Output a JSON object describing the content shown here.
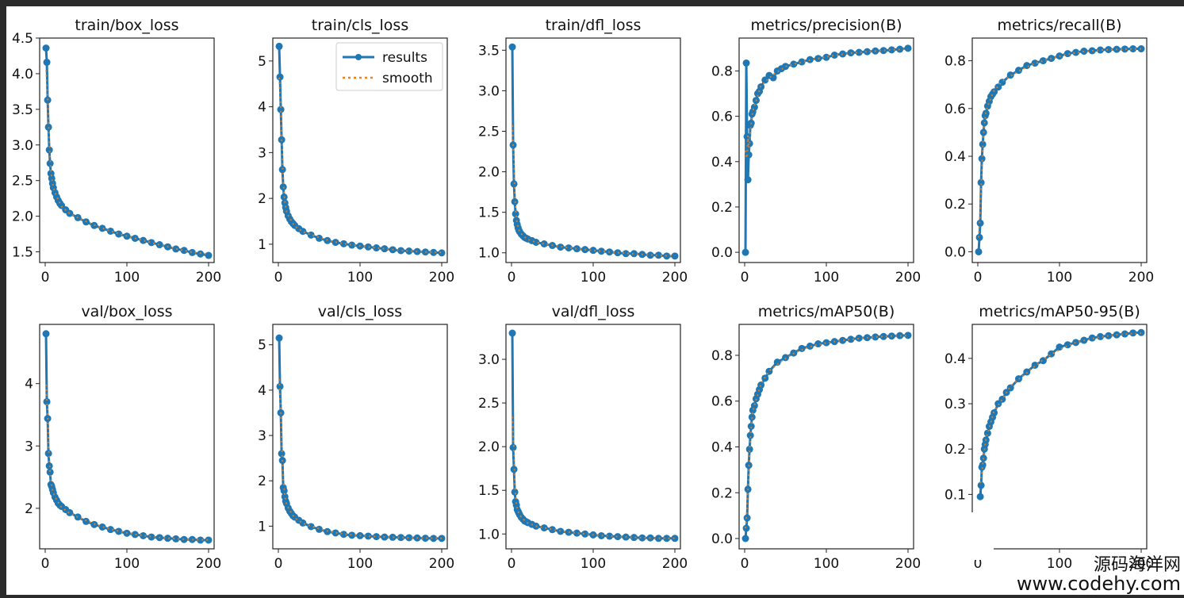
{
  "figure": {
    "legend": {
      "results": "results",
      "smooth": "smooth"
    },
    "colors": {
      "results": "#1f77b4",
      "smooth": "#ff7f0e",
      "frame": "#222222"
    }
  },
  "watermark": {
    "line1": "源码海洋网",
    "line2": "www.codehy.com"
  },
  "chart_data": [
    {
      "type": "line",
      "title": "train/box_loss",
      "xlim": [
        0,
        200
      ],
      "ylim": [
        1.35,
        4.5
      ],
      "xticks": [
        0,
        100,
        200
      ],
      "yticks": [
        1.5,
        2.0,
        2.5,
        3.0,
        3.5,
        4.0,
        4.5
      ],
      "ytick_labels": [
        "1.5",
        "2.0",
        "2.5",
        "3.0",
        "3.5",
        "4.0",
        "4.5"
      ],
      "legend": false,
      "series": [
        {
          "name": "results",
          "x": [
            1,
            2,
            3,
            4,
            5,
            6,
            7,
            8,
            9,
            10,
            12,
            14,
            16,
            18,
            20,
            25,
            30,
            40,
            50,
            60,
            70,
            80,
            90,
            100,
            110,
            120,
            130,
            140,
            150,
            160,
            170,
            180,
            190,
            200
          ],
          "y": [
            4.36,
            4.16,
            3.63,
            3.25,
            2.93,
            2.74,
            2.6,
            2.53,
            2.46,
            2.4,
            2.33,
            2.27,
            2.22,
            2.18,
            2.15,
            2.09,
            2.04,
            1.98,
            1.92,
            1.87,
            1.83,
            1.79,
            1.75,
            1.72,
            1.69,
            1.66,
            1.63,
            1.6,
            1.57,
            1.54,
            1.52,
            1.49,
            1.47,
            1.45
          ]
        }
      ]
    },
    {
      "type": "line",
      "title": "train/cls_loss",
      "xlim": [
        0,
        200
      ],
      "ylim": [
        0.6,
        5.5
      ],
      "xticks": [
        0,
        100,
        200
      ],
      "yticks": [
        1,
        2,
        3,
        4,
        5
      ],
      "ytick_labels": [
        "1",
        "2",
        "3",
        "4",
        "5"
      ],
      "legend": true,
      "series": [
        {
          "name": "results",
          "x": [
            1,
            2,
            3,
            4,
            5,
            6,
            7,
            8,
            9,
            10,
            12,
            14,
            16,
            18,
            20,
            25,
            30,
            40,
            50,
            60,
            70,
            80,
            90,
            100,
            110,
            120,
            130,
            140,
            150,
            160,
            170,
            180,
            190,
            200
          ],
          "y": [
            5.32,
            4.65,
            3.94,
            3.28,
            2.63,
            2.25,
            2.03,
            1.9,
            1.8,
            1.72,
            1.62,
            1.55,
            1.49,
            1.45,
            1.41,
            1.34,
            1.28,
            1.2,
            1.13,
            1.08,
            1.04,
            1.01,
            0.98,
            0.96,
            0.94,
            0.92,
            0.9,
            0.88,
            0.86,
            0.85,
            0.84,
            0.83,
            0.82,
            0.81
          ]
        }
      ]
    },
    {
      "type": "line",
      "title": "train/dfl_loss",
      "xlim": [
        0,
        200
      ],
      "ylim": [
        0.88,
        3.65
      ],
      "xticks": [
        0,
        100,
        200
      ],
      "yticks": [
        1.0,
        1.5,
        2.0,
        2.5,
        3.0,
        3.5
      ],
      "ytick_labels": [
        "1.0",
        "1.5",
        "2.0",
        "2.5",
        "3.0",
        "3.5"
      ],
      "legend": false,
      "series": [
        {
          "name": "results",
          "x": [
            1,
            2,
            3,
            4,
            5,
            6,
            7,
            8,
            9,
            10,
            12,
            14,
            16,
            18,
            20,
            25,
            30,
            40,
            50,
            60,
            70,
            80,
            90,
            100,
            110,
            120,
            130,
            140,
            150,
            160,
            170,
            180,
            190,
            200
          ],
          "y": [
            3.54,
            2.33,
            1.85,
            1.63,
            1.48,
            1.4,
            1.35,
            1.31,
            1.28,
            1.26,
            1.23,
            1.21,
            1.19,
            1.18,
            1.17,
            1.15,
            1.13,
            1.11,
            1.09,
            1.07,
            1.06,
            1.05,
            1.04,
            1.03,
            1.02,
            1.01,
            1.0,
            0.99,
            0.99,
            0.98,
            0.97,
            0.97,
            0.96,
            0.96
          ]
        }
      ]
    },
    {
      "type": "line",
      "title": "metrics/precision(B)",
      "xlim": [
        0,
        200
      ],
      "ylim": [
        -0.045,
        0.945
      ],
      "xticks": [
        0,
        100,
        200
      ],
      "yticks": [
        0.0,
        0.2,
        0.4,
        0.6,
        0.8
      ],
      "ytick_labels": [
        "0.0",
        "0.2",
        "0.4",
        "0.6",
        "0.8"
      ],
      "legend": false,
      "series": [
        {
          "name": "results",
          "x": [
            1,
            2,
            3,
            4,
            5,
            6,
            7,
            8,
            9,
            10,
            12,
            14,
            16,
            18,
            20,
            25,
            30,
            35,
            40,
            45,
            50,
            60,
            70,
            80,
            90,
            100,
            110,
            120,
            130,
            140,
            150,
            160,
            170,
            180,
            190,
            200
          ],
          "y": [
            0.0,
            0.835,
            0.51,
            0.32,
            0.43,
            0.48,
            0.56,
            0.57,
            0.61,
            0.62,
            0.64,
            0.67,
            0.7,
            0.71,
            0.73,
            0.76,
            0.78,
            0.77,
            0.8,
            0.81,
            0.82,
            0.83,
            0.84,
            0.85,
            0.855,
            0.86,
            0.87,
            0.875,
            0.88,
            0.882,
            0.885,
            0.888,
            0.89,
            0.893,
            0.896,
            0.9
          ]
        }
      ]
    },
    {
      "type": "line",
      "title": "metrics/recall(B)",
      "xlim": [
        0,
        200
      ],
      "ylim": [
        -0.045,
        0.895
      ],
      "xticks": [
        0,
        100,
        200
      ],
      "yticks": [
        0.0,
        0.2,
        0.4,
        0.6,
        0.8
      ],
      "ytick_labels": [
        "0.0",
        "0.2",
        "0.4",
        "0.6",
        "0.8"
      ],
      "legend": false,
      "series": [
        {
          "name": "results",
          "x": [
            1,
            2,
            3,
            4,
            5,
            6,
            7,
            8,
            9,
            10,
            12,
            14,
            16,
            18,
            20,
            25,
            30,
            40,
            50,
            60,
            70,
            80,
            90,
            100,
            110,
            120,
            130,
            140,
            150,
            160,
            170,
            180,
            190,
            200
          ],
          "y": [
            0.0,
            0.06,
            0.12,
            0.29,
            0.39,
            0.45,
            0.5,
            0.54,
            0.57,
            0.58,
            0.61,
            0.63,
            0.65,
            0.66,
            0.67,
            0.69,
            0.71,
            0.74,
            0.76,
            0.78,
            0.79,
            0.8,
            0.81,
            0.82,
            0.83,
            0.835,
            0.84,
            0.842,
            0.845,
            0.847,
            0.848,
            0.849,
            0.85,
            0.85
          ]
        }
      ]
    },
    {
      "type": "line",
      "title": "val/box_loss",
      "xlim": [
        0,
        200
      ],
      "ylim": [
        1.35,
        4.95
      ],
      "xticks": [
        0,
        100,
        200
      ],
      "yticks": [
        2,
        3,
        4
      ],
      "ytick_labels": [
        "2",
        "3",
        "4"
      ],
      "legend": false,
      "series": [
        {
          "name": "results",
          "x": [
            1,
            2,
            3,
            4,
            5,
            6,
            7,
            8,
            9,
            10,
            12,
            14,
            16,
            18,
            20,
            25,
            30,
            40,
            50,
            60,
            70,
            80,
            90,
            100,
            110,
            120,
            130,
            140,
            150,
            160,
            170,
            180,
            190,
            200
          ],
          "y": [
            4.8,
            3.71,
            3.44,
            2.88,
            2.68,
            2.58,
            2.38,
            2.35,
            2.3,
            2.25,
            2.18,
            2.13,
            2.08,
            2.05,
            2.03,
            1.98,
            1.93,
            1.86,
            1.79,
            1.74,
            1.7,
            1.66,
            1.63,
            1.6,
            1.58,
            1.56,
            1.54,
            1.53,
            1.52,
            1.51,
            1.5,
            1.5,
            1.49,
            1.49
          ]
        }
      ]
    },
    {
      "type": "line",
      "title": "val/cls_loss",
      "xlim": [
        0,
        200
      ],
      "ylim": [
        0.5,
        5.45
      ],
      "xticks": [
        0,
        100,
        200
      ],
      "yticks": [
        1,
        2,
        3,
        4,
        5
      ],
      "ytick_labels": [
        "1",
        "2",
        "3",
        "4",
        "5"
      ],
      "legend": false,
      "series": [
        {
          "name": "results",
          "x": [
            1,
            2,
            3,
            4,
            5,
            6,
            7,
            8,
            9,
            10,
            12,
            14,
            16,
            18,
            20,
            25,
            30,
            40,
            50,
            60,
            70,
            80,
            90,
            100,
            110,
            120,
            130,
            140,
            150,
            160,
            170,
            180,
            190,
            200
          ],
          "y": [
            5.15,
            4.08,
            3.5,
            2.6,
            2.45,
            1.85,
            1.78,
            1.65,
            1.55,
            1.5,
            1.4,
            1.33,
            1.28,
            1.23,
            1.2,
            1.13,
            1.07,
            0.99,
            0.93,
            0.88,
            0.85,
            0.82,
            0.8,
            0.79,
            0.78,
            0.77,
            0.76,
            0.755,
            0.75,
            0.745,
            0.74,
            0.735,
            0.73,
            0.73
          ]
        }
      ]
    },
    {
      "type": "line",
      "title": "val/dfl_loss",
      "xlim": [
        0,
        200
      ],
      "ylim": [
        0.83,
        3.4
      ],
      "xticks": [
        0,
        100,
        200
      ],
      "yticks": [
        1.0,
        1.5,
        2.0,
        2.5,
        3.0
      ],
      "ytick_labels": [
        "1.0",
        "1.5",
        "2.0",
        "2.5",
        "3.0"
      ],
      "legend": false,
      "series": [
        {
          "name": "results",
          "x": [
            1,
            2,
            3,
            4,
            5,
            6,
            7,
            8,
            9,
            10,
            12,
            14,
            16,
            18,
            20,
            25,
            30,
            40,
            50,
            60,
            70,
            80,
            90,
            100,
            110,
            120,
            130,
            140,
            150,
            160,
            170,
            180,
            190,
            200
          ],
          "y": [
            3.3,
            1.99,
            1.74,
            1.48,
            1.37,
            1.33,
            1.28,
            1.26,
            1.24,
            1.22,
            1.19,
            1.17,
            1.15,
            1.14,
            1.13,
            1.11,
            1.09,
            1.07,
            1.05,
            1.03,
            1.02,
            1.01,
            1.0,
            0.99,
            0.98,
            0.975,
            0.97,
            0.965,
            0.96,
            0.955,
            0.955,
            0.95,
            0.95,
            0.95
          ]
        }
      ]
    },
    {
      "type": "line",
      "title": "metrics/mAP50(B)",
      "xlim": [
        0,
        200
      ],
      "ylim": [
        -0.045,
        0.935
      ],
      "xticks": [
        0,
        100,
        200
      ],
      "yticks": [
        0.0,
        0.2,
        0.4,
        0.6,
        0.8
      ],
      "ytick_labels": [
        "0.0",
        "0.2",
        "0.4",
        "0.6",
        "0.8"
      ],
      "legend": false,
      "series": [
        {
          "name": "results",
          "x": [
            1,
            2,
            3,
            4,
            5,
            6,
            7,
            8,
            9,
            10,
            12,
            14,
            16,
            18,
            20,
            25,
            30,
            40,
            50,
            60,
            70,
            80,
            90,
            100,
            110,
            120,
            130,
            140,
            150,
            160,
            170,
            180,
            190,
            200
          ],
          "y": [
            0.0,
            0.045,
            0.09,
            0.215,
            0.32,
            0.39,
            0.45,
            0.49,
            0.53,
            0.56,
            0.58,
            0.61,
            0.63,
            0.65,
            0.67,
            0.7,
            0.73,
            0.77,
            0.79,
            0.81,
            0.83,
            0.84,
            0.85,
            0.855,
            0.86,
            0.865,
            0.87,
            0.875,
            0.877,
            0.88,
            0.882,
            0.884,
            0.886,
            0.887
          ]
        }
      ]
    },
    {
      "type": "line",
      "title": "metrics/mAP50-95(B)",
      "xlim": [
        0,
        200
      ],
      "ylim": [
        -0.02,
        0.475
      ],
      "xticks": [
        0,
        100,
        200
      ],
      "yticks": [
        0.1,
        0.2,
        0.3,
        0.4
      ],
      "ytick_labels": [
        "0.1",
        "0.2",
        "0.3",
        "0.4"
      ],
      "legend": false,
      "series": [
        {
          "name": "results",
          "x": [
            3,
            4,
            5,
            6,
            7,
            8,
            9,
            10,
            12,
            14,
            16,
            18,
            20,
            25,
            30,
            35,
            40,
            50,
            60,
            70,
            80,
            90,
            100,
            110,
            120,
            130,
            140,
            150,
            160,
            170,
            180,
            190,
            200
          ],
          "y": [
            0.095,
            0.12,
            0.16,
            0.165,
            0.18,
            0.2,
            0.21,
            0.22,
            0.235,
            0.25,
            0.26,
            0.27,
            0.28,
            0.3,
            0.31,
            0.325,
            0.335,
            0.355,
            0.37,
            0.385,
            0.395,
            0.41,
            0.425,
            0.43,
            0.435,
            0.44,
            0.445,
            0.448,
            0.45,
            0.452,
            0.454,
            0.456,
            0.457
          ]
        }
      ]
    }
  ]
}
